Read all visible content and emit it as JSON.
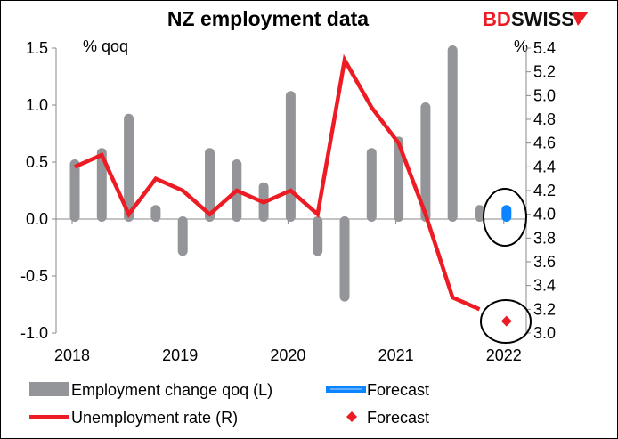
{
  "chart_data": {
    "type": "bar+line",
    "title": "NZ employment data",
    "logo_text": "BDSWISS",
    "categories": [
      "2018Q1",
      "2018Q2",
      "2018Q3",
      "2018Q4",
      "2019Q1",
      "2019Q2",
      "2019Q3",
      "2019Q4",
      "2020Q1",
      "2020Q2",
      "2020Q3",
      "2020Q4",
      "2021Q1",
      "2021Q2",
      "2021Q3",
      "2021Q4",
      "2022Q1"
    ],
    "x_tick_labels": [
      "2018",
      "2019",
      "2020",
      "2021",
      "2022"
    ],
    "left_axis": {
      "label": "% qoq",
      "ylim": [
        -1.0,
        1.5
      ],
      "ticks": [
        "-1.0",
        "-0.5",
        "0.0",
        "0.5",
        "1.0",
        "1.5"
      ]
    },
    "right_axis": {
      "label": "%",
      "ylim": [
        3.0,
        5.4
      ],
      "ticks": [
        "3.0",
        "3.2",
        "3.4",
        "3.6",
        "3.8",
        "4.0",
        "4.2",
        "4.4",
        "4.6",
        "4.8",
        "5.0",
        "5.2",
        "5.4"
      ]
    },
    "series": [
      {
        "name": "Employment change qoq (L)",
        "type": "bar",
        "axis": "left",
        "color": "#939598",
        "values": [
          0.5,
          0.6,
          0.9,
          0.1,
          -0.3,
          0.6,
          0.5,
          0.3,
          1.1,
          -0.3,
          -0.7,
          0.6,
          0.7,
          1.0,
          1.5,
          0.1,
          null
        ]
      },
      {
        "name": "Forecast",
        "type": "bar",
        "axis": "left",
        "color": "#0a84ff",
        "values": [
          null,
          null,
          null,
          null,
          null,
          null,
          null,
          null,
          null,
          null,
          null,
          null,
          null,
          null,
          null,
          null,
          0.1
        ]
      },
      {
        "name": "Unemployment rate (R)",
        "type": "line",
        "axis": "right",
        "color": "#ed1c24",
        "values": [
          4.4,
          4.5,
          4.0,
          4.3,
          4.2,
          4.0,
          4.2,
          4.1,
          4.2,
          4.0,
          5.3,
          4.9,
          4.6,
          4.0,
          3.3,
          3.2,
          null
        ]
      },
      {
        "name": "Forecast",
        "type": "scatter",
        "marker": "diamond",
        "axis": "right",
        "color": "#ed1c24",
        "values": [
          null,
          null,
          null,
          null,
          null,
          null,
          null,
          null,
          null,
          null,
          null,
          null,
          null,
          null,
          null,
          null,
          3.1
        ]
      }
    ],
    "legend": "bottom",
    "grid": false
  }
}
